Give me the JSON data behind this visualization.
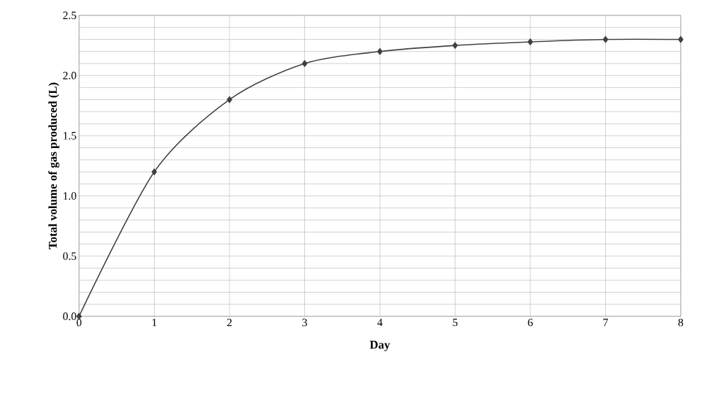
{
  "chart_data": {
    "type": "line",
    "xlabel": "Day",
    "ylabel": "Total volume of gas produced (L)",
    "x": [
      0,
      1,
      2,
      3,
      4,
      5,
      6,
      7,
      8
    ],
    "series": [
      {
        "color": "#404040",
        "values": [
          0,
          1.2,
          1.8,
          2.1,
          2.2,
          2.25,
          2.28,
          2.3,
          2.3
        ]
      }
    ],
    "xlim": [
      0,
      8
    ],
    "xticks": [
      0,
      1,
      2,
      3,
      4,
      5,
      6,
      7,
      8
    ],
    "ylim": [
      0,
      2.5
    ],
    "yticks": [
      "0.0",
      {
        "value": 0.1,
        "label": null
      },
      {
        "value": 0.2,
        "label": null
      },
      {
        "value": 0.3,
        "label": null
      },
      {
        "value": 0.4,
        "label": null
      },
      {
        "value": 0.5,
        "label": "0.5"
      },
      {
        "value": 0.6,
        "label": null
      },
      {
        "value": 0.7,
        "label": null
      },
      {
        "value": 0.8,
        "label": null
      },
      {
        "value": 0.9,
        "label": null
      },
      {
        "value": 1.0,
        "label": "1.0"
      },
      {
        "value": 1.1,
        "label": null
      },
      {
        "value": 1.2,
        "label": null
      },
      {
        "value": 1.3,
        "label": null
      },
      {
        "value": 1.4,
        "label": null
      },
      {
        "value": 1.5,
        "label": "1.5"
      },
      {
        "value": 1.6,
        "label": null
      },
      {
        "value": 1.7,
        "label": null
      },
      {
        "value": 1.8,
        "label": null
      },
      {
        "value": 1.9,
        "label": null
      },
      {
        "value": 2.0,
        "label": "2.0"
      },
      {
        "value": 2.1,
        "label": null
      },
      {
        "value": 2.2,
        "label": null
      },
      {
        "value": 2.3,
        "label": null
      },
      {
        "value": 2.4,
        "label": null
      },
      {
        "value": 2.5,
        "label": "2.5"
      }
    ],
    "grid": true,
    "marker": "diamond",
    "line_style": "solid"
  }
}
